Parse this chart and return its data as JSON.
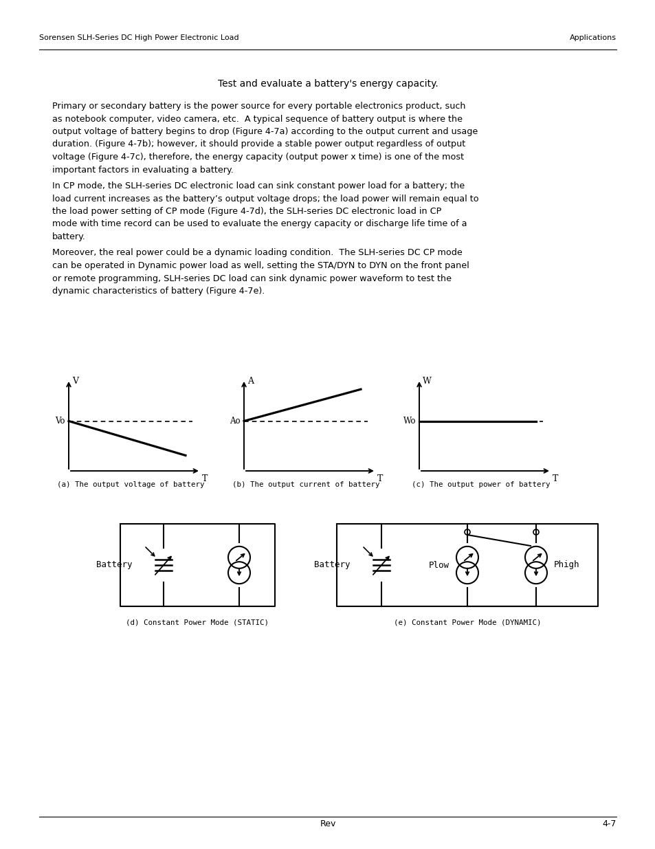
{
  "header_left": "Sorensen SLH-Series DC High Power Electronic Load",
  "header_right": "Applications",
  "footer_center": "Rev",
  "footer_right": "4-7",
  "title_text": "Test and evaluate a battery's energy capacity.",
  "para1": "Primary or secondary battery is the power source for every portable electronics product, such\nas notebook computer, video camera, etc.  A typical sequence of battery output is where the\noutput voltage of battery begins to drop (Figure 4-7a) according to the output current and usage\nduration. (Figure 4-7b); however, it should provide a stable power output regardless of output\nvoltage (Figure 4-7c), therefore, the energy capacity (output power x time) is one of the most\nimportant factors in evaluating a battery.",
  "para2": "In CP mode, the SLH-series DC electronic load can sink constant power load for a battery; the\nload current increases as the battery’s output voltage drops; the load power will remain equal to\nthe load power setting of CP mode (Figure 4-7d), the SLH-series DC electronic load in CP\nmode with time record can be used to evaluate the energy capacity or discharge life time of a\nbattery.",
  "para3": "Moreover, the real power could be a dynamic loading condition.  The SLH-series DC CP mode\ncan be operated in Dynamic power load as well, setting the STA/DYN to DYN on the front panel\nor remote programming, SLH-series DC load can sink dynamic power waveform to test the\ndynamic characteristics of battery (Figure 4-7e).",
  "caption_a": "(a) The output voltage of battery",
  "caption_b": "(b) The output current of battery",
  "caption_c": "(c) The output power of battery",
  "caption_d": "(d) Constant Power Mode (STATIC)",
  "caption_e": "(e) Constant Power Mode (DYNAMIC)",
  "bg_color": "#ffffff",
  "text_color": "#000000"
}
